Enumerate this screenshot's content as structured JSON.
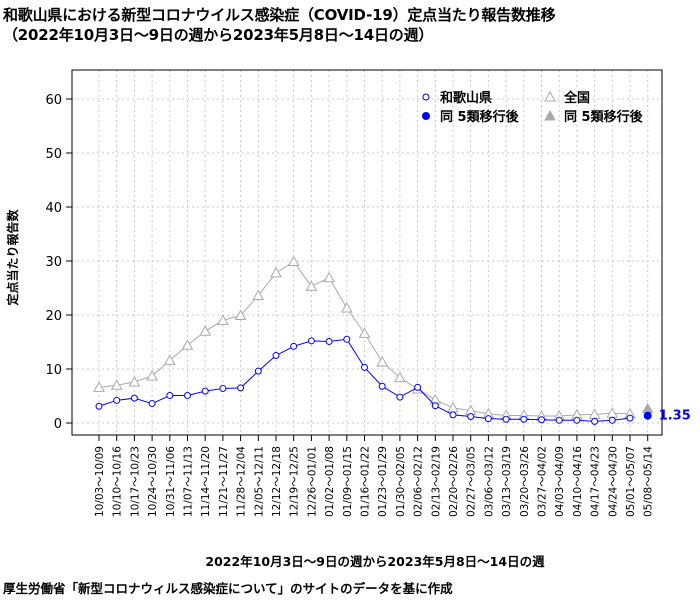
{
  "title_line1": "和歌山県における新型コロナウイルス感染症（COVID-19）定点当たり報告数推移",
  "title_line2": "（2022年10月3日～9日の週から2023年5月8日～14日の週）",
  "source": "厚生労働省「新型コロナウィルス感染症について」のサイトのデータを基に作成",
  "chart_data": {
    "type": "line",
    "xlabel": "2022年10月3日～9日の週から2023年5月8日～14日の週",
    "ylabel": "定点当たり報告数",
    "ylim": [
      0,
      65
    ],
    "yticks": [
      0,
      10,
      20,
      30,
      40,
      50,
      60
    ],
    "grid": true,
    "legend_position": "top-right",
    "categories": [
      "10/03～10/09",
      "10/10～10/16",
      "10/17～10/23",
      "10/24～10/30",
      "10/31～11/06",
      "11/07～11/13",
      "11/14～11/20",
      "11/21～11/27",
      "11/28～12/04",
      "12/05～12/11",
      "12/12～12/18",
      "12/19～12/25",
      "12/26～01/01",
      "01/02～01/08",
      "01/09～01/15",
      "01/16～01/22",
      "01/23～01/29",
      "01/30～02/05",
      "02/06～02/12",
      "02/13～02/19",
      "02/20～02/26",
      "02/27～03/05",
      "03/06～03/12",
      "03/13～03/19",
      "03/20～03/26",
      "03/27～04/02",
      "04/03～04/09",
      "04/10～04/16",
      "04/17～04/23",
      "04/24～04/30",
      "05/01～05/07",
      "05/08～05/14"
    ],
    "series": [
      {
        "name": "和歌山県",
        "color": "#0000ff",
        "marker": "circle-open",
        "values": [
          3.1,
          4.2,
          4.6,
          3.6,
          5.1,
          5.1,
          5.9,
          6.4,
          6.5,
          9.6,
          12.5,
          14.2,
          15.2,
          15.1,
          15.5,
          10.3,
          6.8,
          4.8,
          6.6,
          3.2,
          1.5,
          1.2,
          0.8,
          0.7,
          0.7,
          0.6,
          0.5,
          0.5,
          0.3,
          0.5,
          0.9,
          null
        ]
      },
      {
        "name": "全国",
        "color": "#aaaaaa",
        "marker": "triangle-open",
        "values": [
          6.6,
          7.0,
          7.6,
          8.7,
          11.6,
          14.4,
          17.0,
          19.0,
          19.9,
          23.6,
          27.8,
          29.9,
          25.3,
          26.9,
          21.3,
          16.6,
          11.3,
          8.4,
          6.3,
          4.3,
          2.8,
          2.3,
          1.7,
          1.4,
          1.4,
          1.3,
          1.3,
          1.5,
          1.6,
          1.8,
          1.7,
          null
        ]
      },
      {
        "name": "同 5類移行後",
        "color": "#0000ff",
        "marker": "circle-filled",
        "values": [
          null,
          null,
          null,
          null,
          null,
          null,
          null,
          null,
          null,
          null,
          null,
          null,
          null,
          null,
          null,
          null,
          null,
          null,
          null,
          null,
          null,
          null,
          null,
          null,
          null,
          null,
          null,
          null,
          null,
          null,
          null,
          1.35
        ]
      },
      {
        "name": "同 5類移行後",
        "color": "#aaaaaa",
        "marker": "triangle-filled",
        "values": [
          null,
          null,
          null,
          null,
          null,
          null,
          null,
          null,
          null,
          null,
          null,
          null,
          null,
          null,
          null,
          null,
          null,
          null,
          null,
          null,
          null,
          null,
          null,
          null,
          null,
          null,
          null,
          null,
          null,
          null,
          null,
          2.63
        ]
      }
    ],
    "annotations": [
      {
        "text": "1.35",
        "color": "#0000ff",
        "category": "05/08～05/14",
        "value": 1.35
      }
    ]
  }
}
